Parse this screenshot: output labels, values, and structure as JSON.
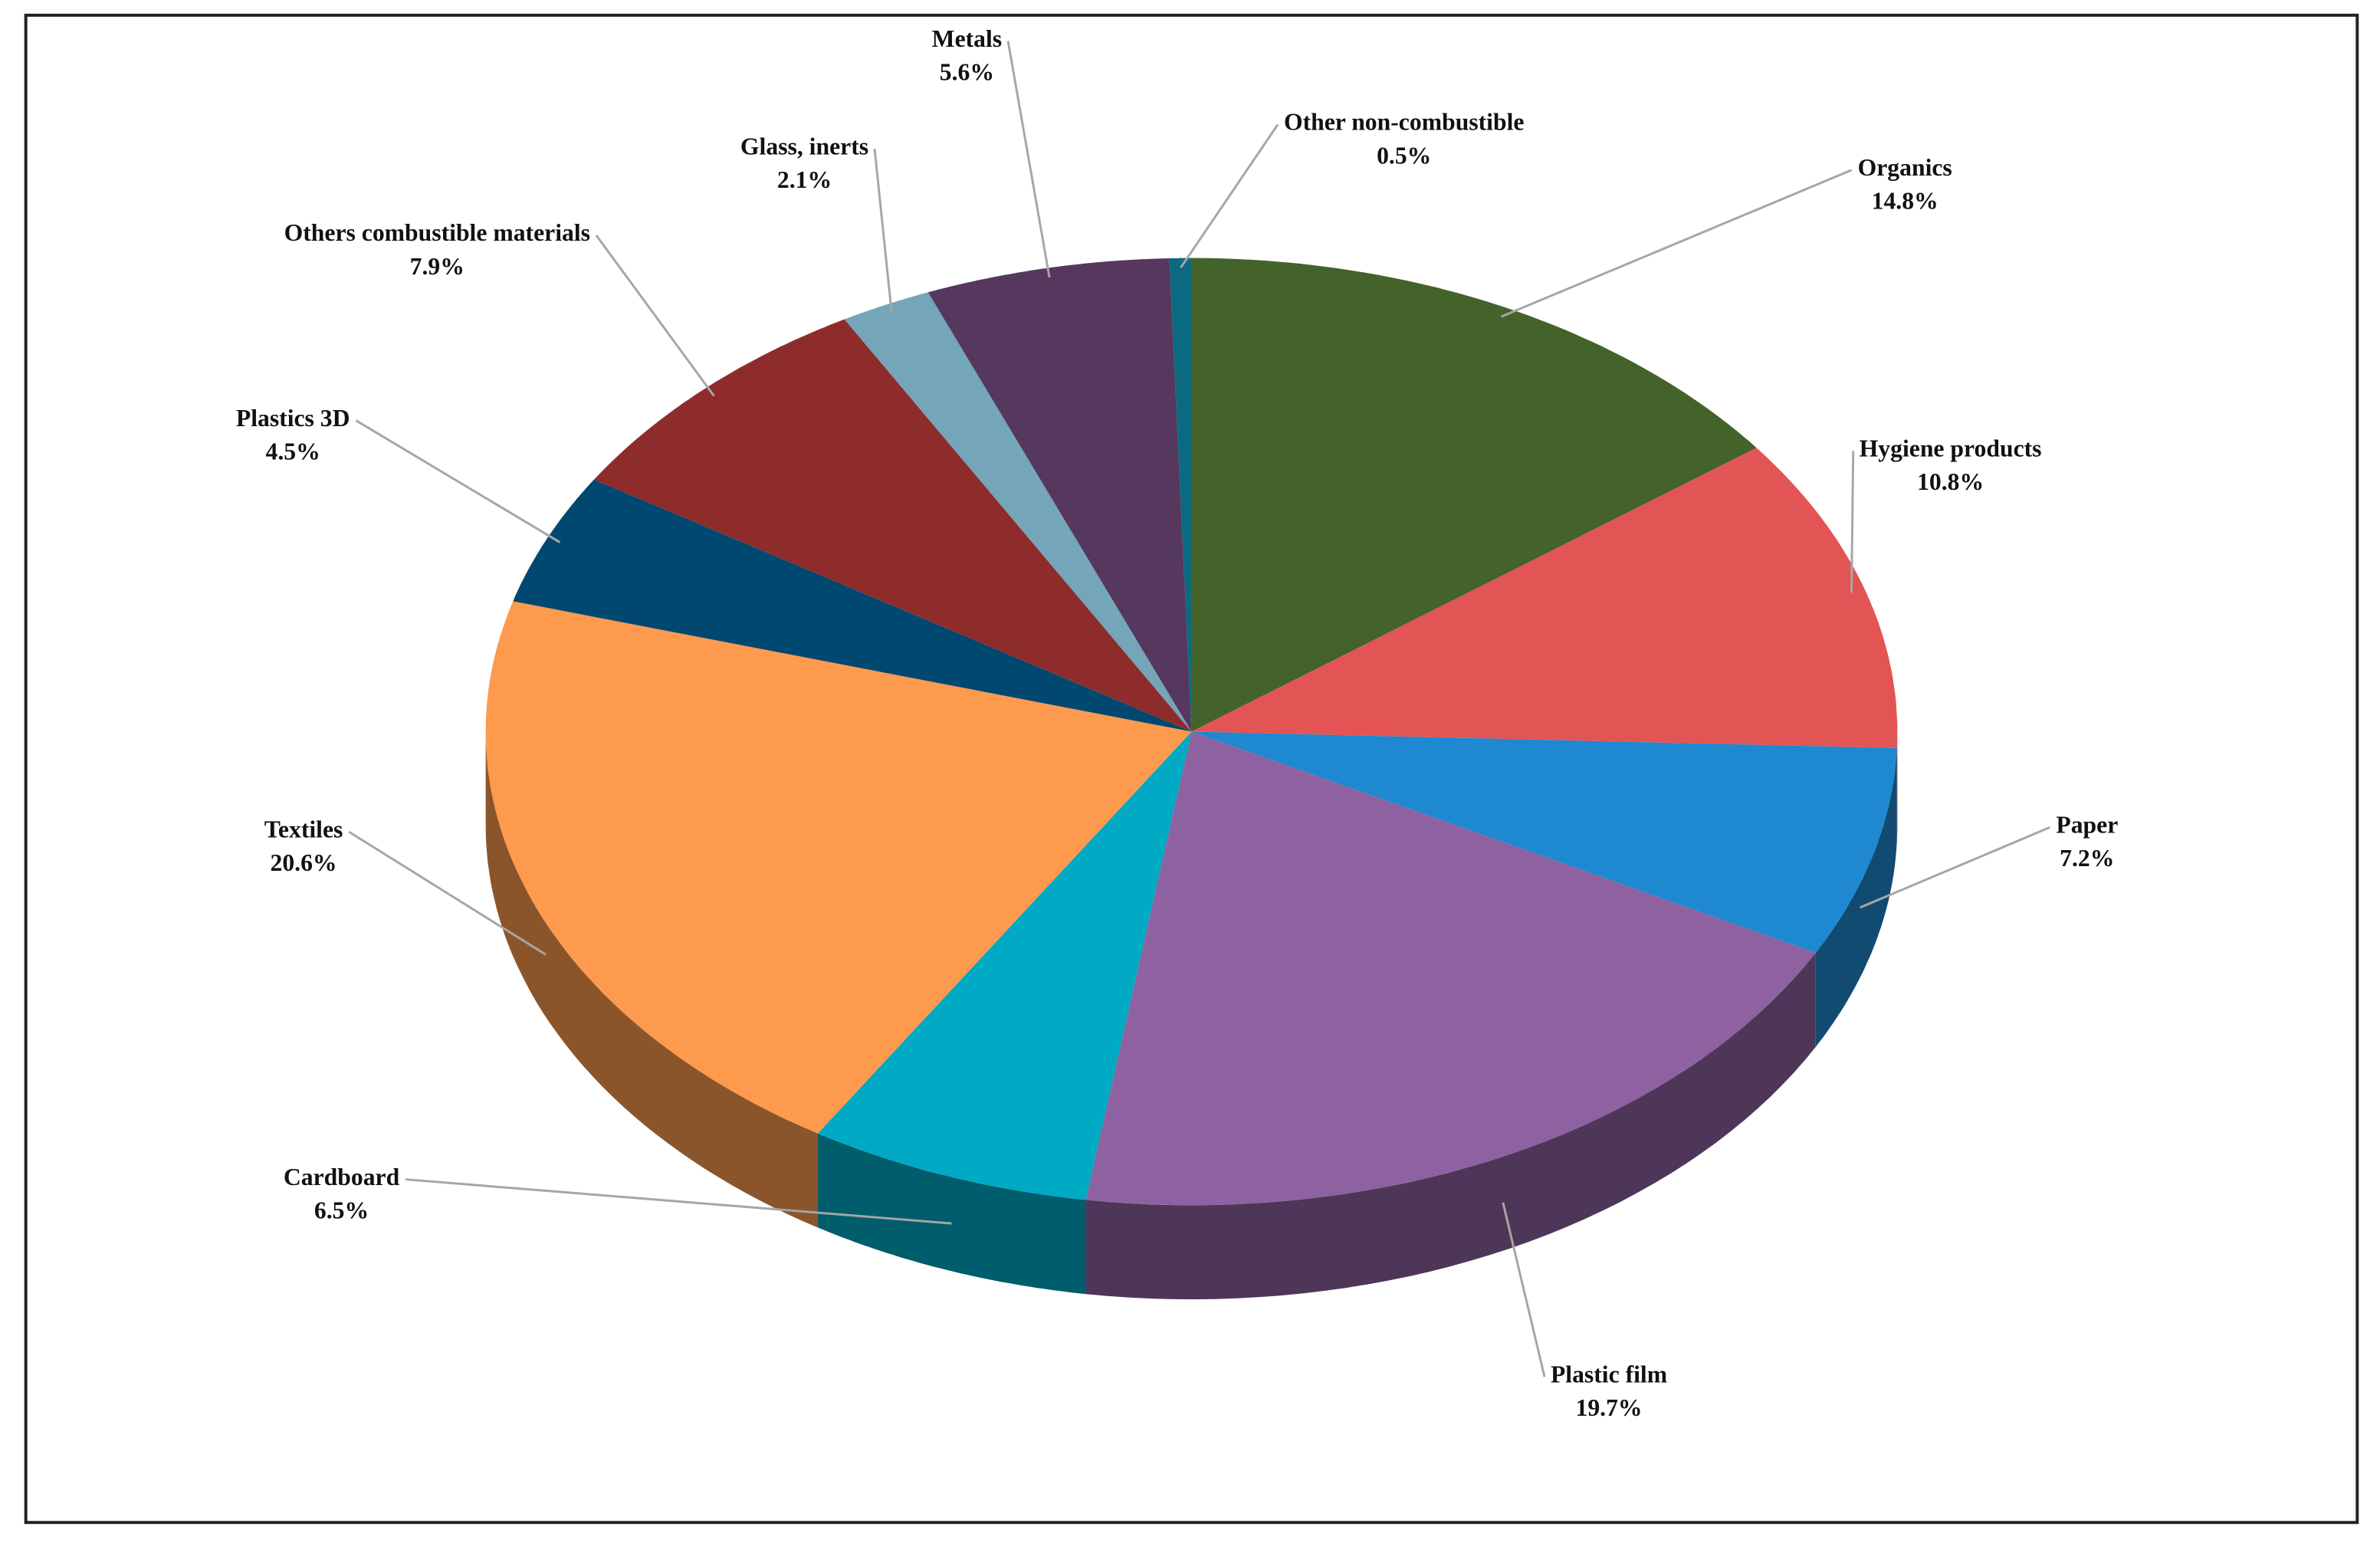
{
  "chart_data": {
    "type": "pie",
    "categories": [
      "Organics",
      "Hygiene products",
      "Paper",
      "Plastic film",
      "Cardboard",
      "Textiles",
      "Plastics 3D",
      "Others combustible materials",
      "Glass, inerts",
      "Metals",
      "Other non-combustible"
    ],
    "values": [
      14.8,
      10.8,
      7.2,
      19.7,
      6.5,
      20.6,
      4.5,
      7.9,
      2.1,
      5.6,
      0.5
    ],
    "value_labels": [
      "14.8%",
      "10.8%",
      "7.2%",
      "19.7%",
      "6.5%",
      "20.6%",
      "4.5%",
      "7.9%",
      "2.1%",
      "5.6%",
      "0.5%"
    ],
    "colors": [
      "#43632b",
      "#e35454",
      "#1e88d0",
      "#8e62a0",
      "#00a9c4",
      "#fd9a4e",
      "#014870",
      "#8e2c2c",
      "#74a5b8",
      "#56375e",
      "#0b6a80"
    ]
  }
}
